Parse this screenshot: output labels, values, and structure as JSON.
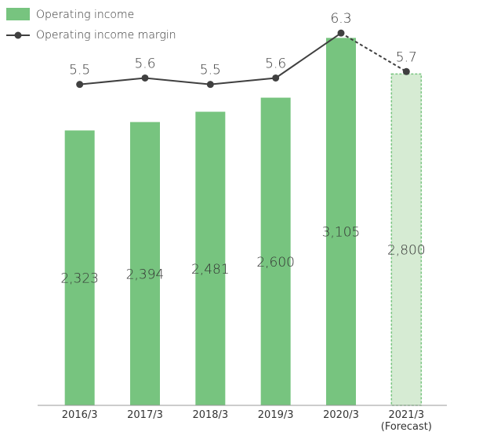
{
  "chart_data": {
    "type": "bar_line",
    "categories": [
      "2016/3",
      "2017/3",
      "2018/3",
      "2019/3",
      "2020/3",
      "2021/3 (Forecast)"
    ],
    "series": [
      {
        "name": "Operating income",
        "type": "bar",
        "color": "#77c47f",
        "forecast_color": "#d6ebd3",
        "values": [
          2323,
          2394,
          2481,
          2600,
          3105,
          2800
        ],
        "value_labels": [
          "2,323",
          "2,394",
          "2,481",
          "2,600",
          "3,105",
          "2,800"
        ]
      },
      {
        "name": "Operating income margin",
        "type": "line",
        "color": "#404040",
        "axis": "y2",
        "values": [
          5.5,
          5.6,
          5.5,
          5.6,
          6.3,
          5.7
        ]
      }
    ],
    "forecast_index": 5,
    "ylim": [
      0,
      3200
    ],
    "y2lim": [
      0.5,
      6.4
    ]
  }
}
